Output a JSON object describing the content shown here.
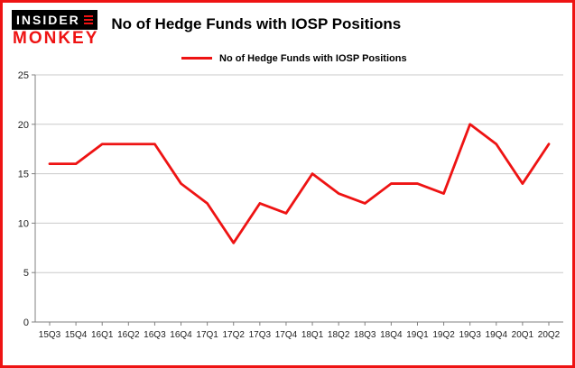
{
  "brand": {
    "insider": "INSIDER",
    "monkey": "MONKEY"
  },
  "header": {
    "title": "No of Hedge Funds with IOSP Positions"
  },
  "legend": {
    "label": "No of Hedge Funds with IOSP Positions"
  },
  "colors": {
    "line_red": "#ee1313",
    "accent_red": "#ee1313",
    "grid": "#c9c9c9",
    "axis": "#808080",
    "tick_text": "#222222"
  },
  "chart_data": {
    "type": "line",
    "title": "No of Hedge Funds with IOSP Positions",
    "categories": [
      "15Q3",
      "15Q4",
      "16Q1",
      "16Q2",
      "16Q3",
      "16Q4",
      "17Q1",
      "17Q2",
      "17Q3",
      "17Q4",
      "18Q1",
      "18Q2",
      "18Q3",
      "18Q4",
      "19Q1",
      "19Q2",
      "19Q3",
      "19Q4",
      "20Q1",
      "20Q2"
    ],
    "series": [
      {
        "name": "No of Hedge Funds with IOSP Positions",
        "values": [
          16,
          16,
          18,
          18,
          18,
          14,
          12,
          8,
          12,
          11,
          15,
          13,
          12,
          14,
          14,
          13,
          20,
          18,
          14,
          18
        ]
      }
    ],
    "xlabel": "",
    "ylabel": "",
    "ylim": [
      0,
      25
    ],
    "yticks": [
      0,
      5,
      10,
      15,
      20,
      25
    ],
    "grid": true,
    "legend_position": "top-left"
  }
}
